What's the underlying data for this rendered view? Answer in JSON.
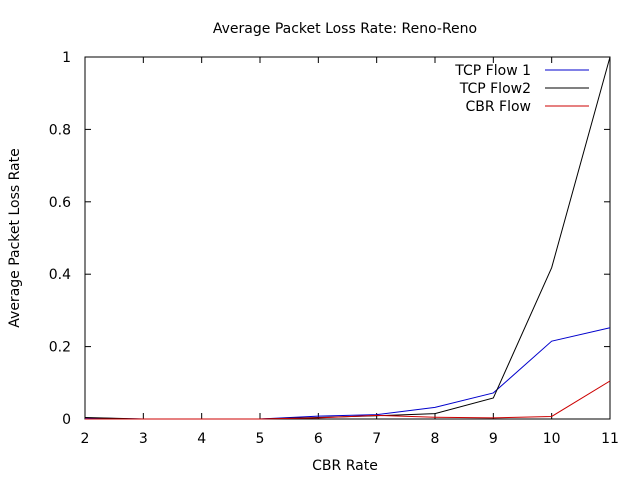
{
  "chart_data": {
    "type": "line",
    "title": "Average Packet Loss Rate: Reno-Reno",
    "xlabel": "CBR Rate",
    "ylabel": "Average Packet Loss Rate",
    "xlim": [
      2,
      11
    ],
    "ylim": [
      0,
      1
    ],
    "grid": false,
    "legend_position": "top-right",
    "x": [
      2,
      3,
      4,
      5,
      6,
      7,
      8,
      9,
      10,
      11
    ],
    "xticks": [
      "2",
      "3",
      "4",
      "5",
      "6",
      "7",
      "8",
      "9",
      "10",
      "11"
    ],
    "yticks": [
      "0",
      "0.2",
      "0.4",
      "0.6",
      "0.8",
      "1"
    ],
    "ytick_values": [
      0,
      0.2,
      0.4,
      0.6,
      0.8,
      1
    ],
    "series": [
      {
        "name": "TCP Flow 1",
        "color": "#0000cc",
        "values": [
          0.003,
          0.0,
          0.0,
          0.0,
          0.008,
          0.012,
          0.032,
          0.072,
          0.215,
          0.252
        ]
      },
      {
        "name": "TCP Flow2",
        "color": "#000000",
        "values": [
          0.004,
          0.0,
          0.0,
          0.0,
          0.004,
          0.009,
          0.015,
          0.058,
          0.418,
          1.0
        ]
      },
      {
        "name": "CBR Flow",
        "color": "#cc0000",
        "values": [
          0.0,
          0.0,
          0.0,
          0.0,
          0.003,
          0.01,
          0.005,
          0.003,
          0.007,
          0.105
        ]
      }
    ]
  }
}
